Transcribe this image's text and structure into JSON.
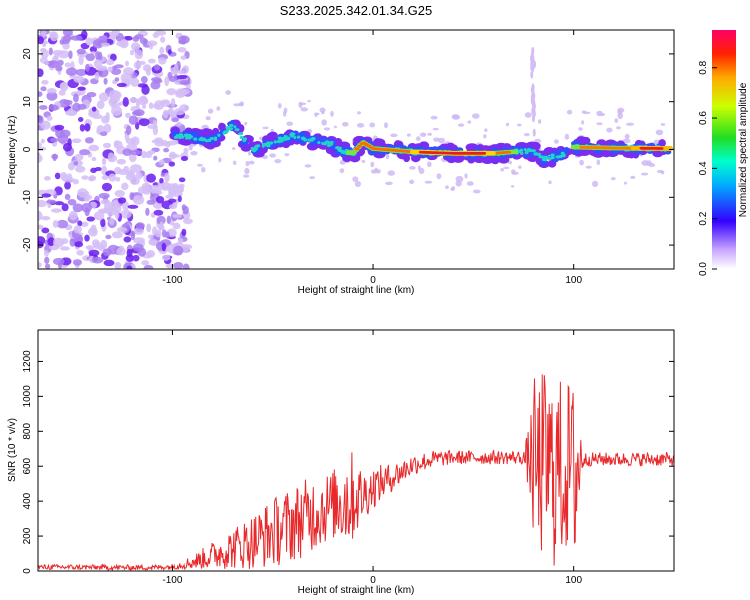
{
  "title": "S233.2025.342.01.34.G25",
  "chart_data": [
    {
      "type": "heatmap",
      "name": "spectrogram",
      "xlabel": "Height of straight line (km)",
      "ylabel": "Frequency (Hz)",
      "xlim": [
        -167,
        150
      ],
      "ylim": [
        -25,
        25
      ],
      "xticks": [
        -100,
        0,
        100
      ],
      "yticks": [
        -20,
        -10,
        0,
        10,
        20
      ],
      "grid": false,
      "ridge": {
        "x": [
          -100,
          -90,
          -80,
          -70,
          -60,
          -50,
          -40,
          -30,
          -20,
          -15,
          -10,
          -5,
          0,
          20,
          40,
          60,
          70,
          80,
          85,
          90,
          95,
          100,
          120,
          148
        ],
        "y": [
          3,
          2.5,
          2,
          5,
          0,
          1.5,
          3,
          2,
          1,
          -0.5,
          -0.8,
          1.5,
          0.2,
          -0.5,
          -0.8,
          -0.8,
          -0.5,
          -0.3,
          -2,
          -1.5,
          -1,
          0.5,
          0.3,
          0.2
        ]
      },
      "noise_region_x": [
        -167,
        -92
      ],
      "colorbar": {
        "label": "Normalized spectral amplitude",
        "ticks": [
          0.0,
          0.2,
          0.4,
          0.6,
          0.8
        ],
        "range": [
          0,
          0.95
        ]
      }
    },
    {
      "type": "line",
      "name": "snr",
      "xlabel": "Height of straight line (km)",
      "ylabel": "SNR (10 * v/v)",
      "xlim": [
        -167,
        150
      ],
      "ylim": [
        0,
        1380
      ],
      "xticks": [
        -100,
        0,
        100
      ],
      "yticks": [
        0,
        200,
        400,
        600,
        800,
        1000,
        1200
      ],
      "color": "#e8282a",
      "grid": false,
      "series": [
        {
          "name": "SNR",
          "x": [
            -167,
            -150,
            -130,
            -110,
            -100,
            -90,
            -80,
            -70,
            -60,
            -50,
            -40,
            -30,
            -20,
            -12,
            -5,
            0,
            10,
            20,
            30,
            40,
            50,
            60,
            70,
            75,
            78,
            80,
            82,
            85,
            88,
            90,
            92,
            95,
            98,
            100,
            102,
            104,
            106,
            110,
            120,
            130,
            140,
            150
          ],
          "mean": [
            22,
            22,
            20,
            20,
            25,
            50,
            90,
            130,
            170,
            220,
            270,
            330,
            380,
            420,
            430,
            480,
            540,
            610,
            640,
            650,
            650,
            650,
            650,
            650,
            640,
            620,
            560,
            620,
            600,
            560,
            600,
            550,
            620,
            560,
            600,
            640,
            640,
            640,
            640,
            640,
            640,
            640
          ],
          "spread": [
            15,
            15,
            15,
            15,
            15,
            40,
            80,
            120,
            160,
            200,
            220,
            220,
            200,
            300,
            150,
            120,
            80,
            60,
            50,
            40,
            40,
            40,
            40,
            40,
            200,
            500,
            520,
            550,
            500,
            560,
            560,
            500,
            500,
            520,
            700,
            80,
            40,
            40,
            40,
            40,
            40,
            40
          ]
        }
      ]
    }
  ]
}
